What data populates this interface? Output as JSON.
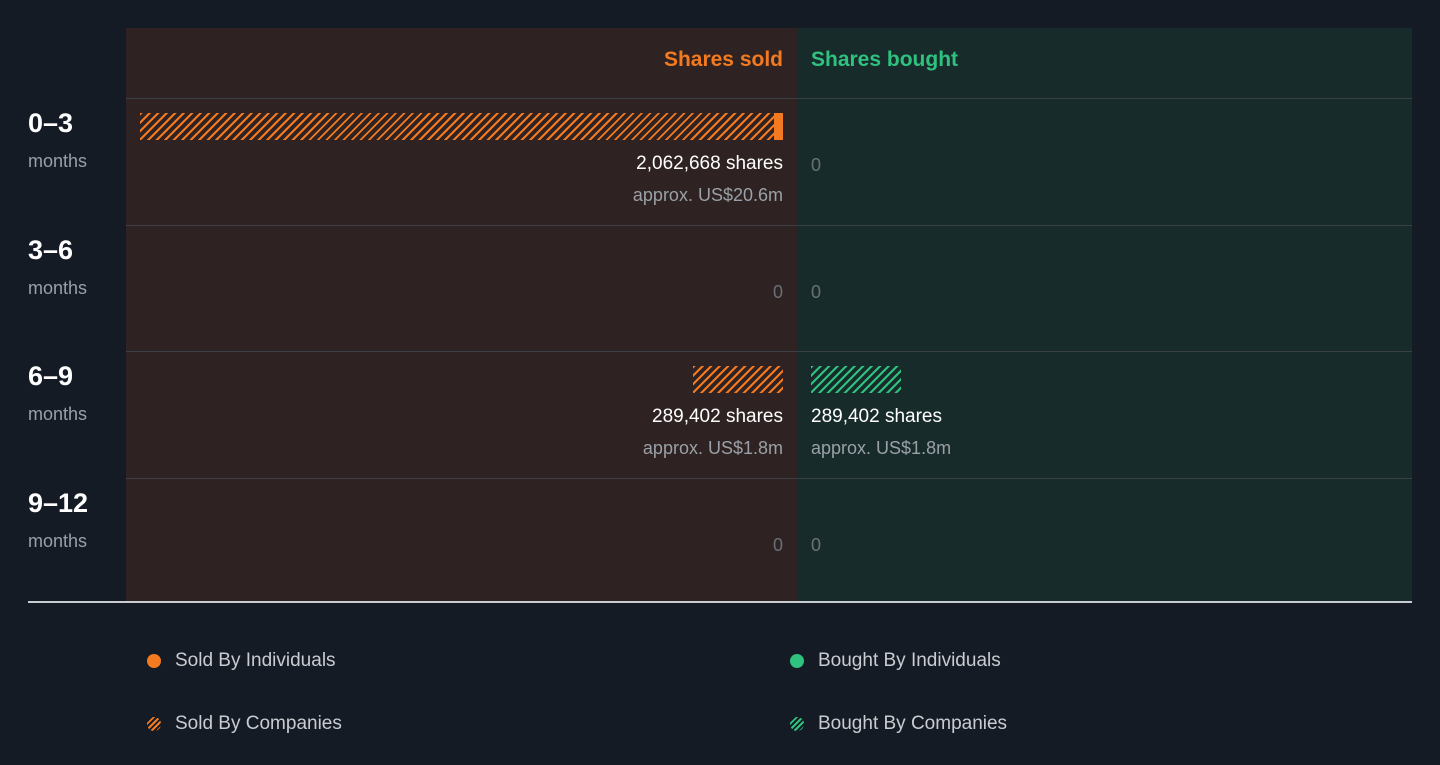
{
  "colors": {
    "sold": "#f37a20",
    "bought": "#2ec27e"
  },
  "headers": {
    "sold": "Shares sold",
    "bought": "Shares bought"
  },
  "rows": [
    {
      "period": "0–3",
      "unit": "months",
      "sold": {
        "shares_label": "2,062,668 shares",
        "approx": "approx. US$20.6m",
        "individuals": 14000,
        "companies": 2048668
      },
      "bought": {
        "zero": "0"
      }
    },
    {
      "period": "3–6",
      "unit": "months",
      "sold": {
        "zero": "0"
      },
      "bought": {
        "zero": "0"
      }
    },
    {
      "period": "6–9",
      "unit": "months",
      "sold": {
        "shares_label": "289,402 shares",
        "approx": "approx. US$1.8m",
        "individuals": 0,
        "companies": 289402
      },
      "bought": {
        "shares_label": "289,402 shares",
        "approx": "approx. US$1.8m",
        "individuals": 0,
        "companies": 289402
      }
    },
    {
      "period": "9–12",
      "unit": "months",
      "sold": {
        "zero": "0"
      },
      "bought": {
        "zero": "0"
      }
    }
  ],
  "legend": {
    "sold_individuals": "Sold By Individuals",
    "sold_companies": "Sold By Companies",
    "bought_individuals": "Bought By Individuals",
    "bought_companies": "Bought By Companies"
  },
  "chart_data": {
    "type": "bar",
    "categories": [
      "0–3 months",
      "3–6 months",
      "6–9 months",
      "9–12 months"
    ],
    "series": [
      {
        "name": "Sold By Individuals",
        "values": [
          14000,
          0,
          0,
          0
        ]
      },
      {
        "name": "Sold By Companies",
        "values": [
          2048668,
          0,
          289402,
          0
        ]
      },
      {
        "name": "Bought By Individuals",
        "values": [
          0,
          0,
          0,
          0
        ]
      },
      {
        "name": "Bought By Companies",
        "values": [
          0,
          0,
          289402,
          0
        ]
      }
    ],
    "totals_sold": [
      2062668,
      0,
      289402,
      0
    ],
    "totals_bought": [
      0,
      0,
      289402,
      0
    ]
  }
}
